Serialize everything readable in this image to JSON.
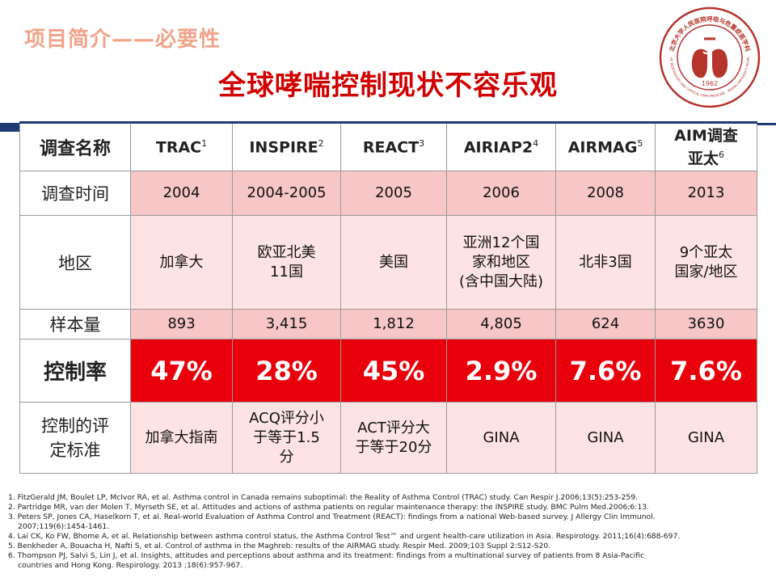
{
  "header": {
    "section_title": "项目简介——必要性",
    "main_title": "全球哮喘控制现状不容乐观"
  },
  "seal": {
    "year": "1962",
    "text_top": "北京大学人民医院呼吸与危重症医学科",
    "text_bottom": "DEPARTMENT OF RESPIRATORY AND CRITICAL CARE MEDICINE · PEKING UNIVERSITY PEOPLE'S HOSPITAL",
    "color": "#b5342c"
  },
  "table": {
    "corner_label": "调查名称",
    "columns": [
      {
        "name": "TRAC",
        "ref": "1"
      },
      {
        "name": "INSPIRE",
        "ref": "2"
      },
      {
        "name": "REACT",
        "ref": "3"
      },
      {
        "name": "AIRIAP2",
        "ref": "4"
      },
      {
        "name": "AIRMAG",
        "ref": "5"
      },
      {
        "name_line1": "AIM调查",
        "name_line2": "亚太",
        "ref": "6"
      }
    ],
    "rows": [
      {
        "label": "调查时间",
        "values": [
          "2004",
          "2004-2005",
          "2005",
          "2006",
          "2008",
          "2013"
        ]
      },
      {
        "label": "地区",
        "values": [
          [
            "加拿大"
          ],
          [
            "欧亚北美",
            "11国"
          ],
          [
            "美国"
          ],
          [
            "亚洲12个国",
            "家和地区",
            "(含中国大陆)"
          ],
          [
            "北非3国"
          ],
          [
            "9个亚太",
            "国家/地区"
          ]
        ]
      },
      {
        "label": "样本量",
        "values": [
          "893",
          "3,415",
          "1,812",
          "4,805",
          "624",
          "3630"
        ]
      },
      {
        "label": "控制率",
        "values": [
          "47%",
          "28%",
          "45%",
          "2.9%",
          "7.6%",
          "7.6%"
        ]
      },
      {
        "label_line1": "控制的评",
        "label_line2": "定标准",
        "values": [
          [
            "加拿大指南"
          ],
          [
            "ACQ评分小",
            "于等于1.5",
            "分"
          ],
          [
            "ACT评分大",
            "于等于20分"
          ],
          [
            "GINA"
          ],
          [
            "GINA"
          ],
          [
            "GINA"
          ]
        ]
      }
    ]
  },
  "footnotes": [
    "1. FitzGerald JM, Boulet LP, McIvor RA, et al. Asthma control in Canada remains suboptimal: the Reality of Asthma Control (TRAC) study. Can Respir J.2006;13(5):253-259.",
    "2. Partridge MR, van der Molen T, Myrseth SE, et al. Attitudes and actions of asthma patients on regular maintenance therapy: the INSPIRE study. BMC Pulm Med.2006;6:13.",
    "3. Peters SP, Jones CA, Haselkorn T, et al. Real-world Evaluation of Asthma Control and Treatment (REACT): findings from a national Web-based survey. J Allergy Clin Immunol.",
    "2007;119(6):1454-1461.",
    "4. Lai CK, Ko FW, Bhome A, et al. Relationship between asthma control status, the Asthma Control Test™ and urgent health-care utilization in Asia. Respirology. 2011;16(4):688-697.",
    "5. Benkheder A, Bouacha H, Nafti S, et al. Control of asthma in the Maghreb: results of the AIRMAG study. Respir Med. 2009;103 Suppl 2:S12-S20.",
    "6. Thompson PJ, Salvi S, Lin J, et al. Insights, attitudes and perceptions about asthma and its treatment: findings from a multinational survey of patients from 8 Asia-Pacific",
    "countries and Hong Kong. Respirology. 2013 ;18(6):957-967."
  ],
  "colors": {
    "title_red": "#d00000",
    "section_title": "#f0a48a",
    "rate_bg": "#e8000b",
    "light_pink": "#fde3e3",
    "pink": "#f7c6c7",
    "navy": "#1f3b73"
  }
}
